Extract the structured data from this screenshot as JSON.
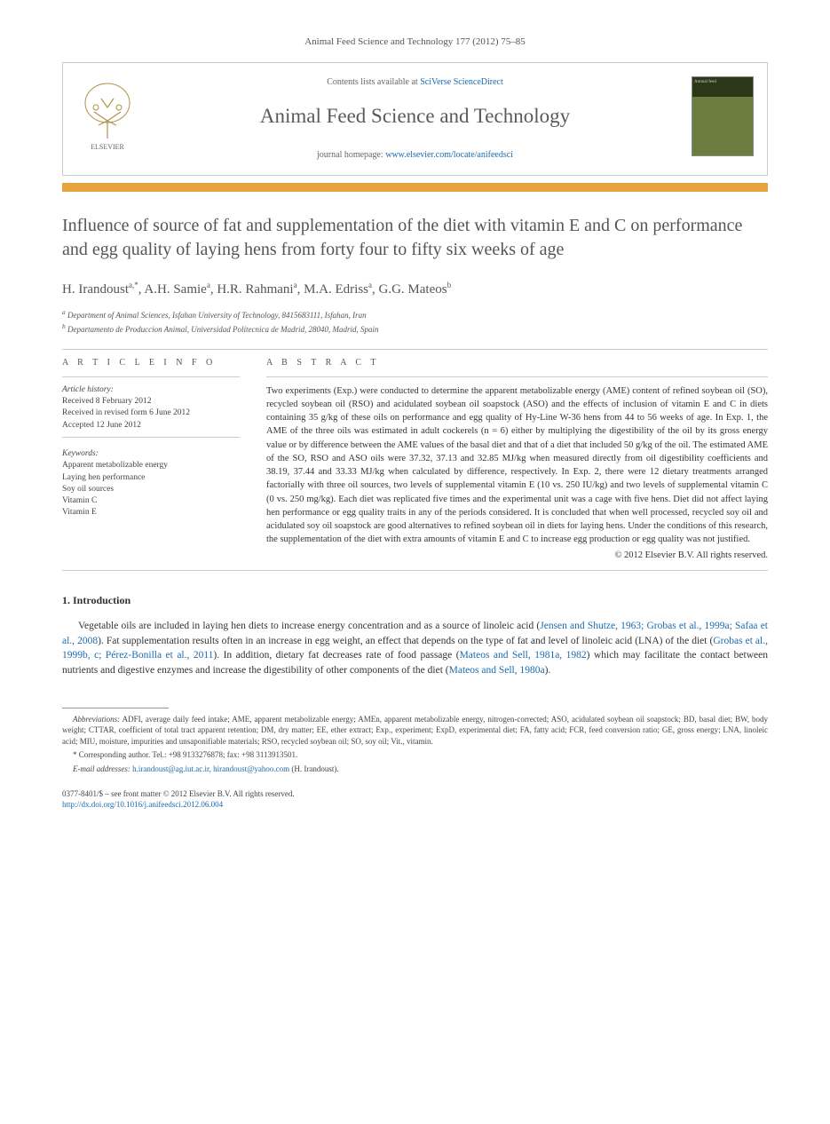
{
  "header": {
    "citation": "Animal Feed Science and Technology 177 (2012) 75–85",
    "contents_prefix": "Contents lists available at ",
    "contents_link": "SciVerse ScienceDirect",
    "journal_name": "Animal Feed Science and Technology",
    "homepage_prefix": "journal homepage: ",
    "homepage_url": "www.elsevier.com/locate/anifeedsci",
    "cover_label": "Animal feed"
  },
  "article": {
    "title": "Influence of source of fat and supplementation of the diet with vitamin E and C on performance and egg quality of laying hens from forty four to fifty six weeks of age",
    "authors_html": "H. Irandoust<sup>a,*</sup>, A.H. Samie<sup>a</sup>, H.R. Rahmani<sup>a</sup>, M.A. Edriss<sup>a</sup>, G.G. Mateos<sup>b</sup>",
    "affiliations": [
      "a Department of Animal Sciences, Isfahan University of Technology, 8415683111, Isfahan, Iran",
      "b Departamento de Produccion Animal, Universidad Politecnica de Madrid, 28040, Madrid, Spain"
    ]
  },
  "info": {
    "section_label": "A R T I C L E   I N F O",
    "history_label": "Article history:",
    "history": [
      "Received 8 February 2012",
      "Received in revised form 6 June 2012",
      "Accepted 12 June 2012"
    ],
    "keywords_label": "Keywords:",
    "keywords": [
      "Apparent metabolizable energy",
      "Laying hen performance",
      "Soy oil sources",
      "Vitamin C",
      "Vitamin E"
    ]
  },
  "abstract": {
    "section_label": "A B S T R A C T",
    "text": "Two experiments (Exp.) were conducted to determine the apparent metabolizable energy (AME) content of refined soybean oil (SO), recycled soybean oil (RSO) and acidulated soybean oil soapstock (ASO) and the effects of inclusion of vitamin E and C in diets containing 35 g/kg of these oils on performance and egg quality of Hy-Line W-36 hens from 44 to 56 weeks of age. In Exp. 1, the AME of the three oils was estimated in adult cockerels (n = 6) either by multiplying the digestibility of the oil by its gross energy value or by difference between the AME values of the basal diet and that of a diet that included 50 g/kg of the oil. The estimated AME of the SO, RSO and ASO oils were 37.32, 37.13 and 32.85 MJ/kg when measured directly from oil digestibility coefficients and 38.19, 37.44 and 33.33 MJ/kg when calculated by difference, respectively. In Exp. 2, there were 12 dietary treatments arranged factorially with three oil sources, two levels of supplemental vitamin E (10 vs. 250 IU/kg) and two levels of supplemental vitamin C (0 vs. 250 mg/kg). Each diet was replicated five times and the experimental unit was a cage with five hens. Diet did not affect laying hen performance or egg quality traits in any of the periods considered. It is concluded that when well processed, recycled soy oil and acidulated soy oil soapstock are good alternatives to refined soybean oil in diets for laying hens. Under the conditions of this research, the supplementation of the diet with extra amounts of vitamin E and C to increase egg production or egg quality was not justified.",
    "copyright": "© 2012 Elsevier B.V. All rights reserved."
  },
  "intro": {
    "heading": "1.  Introduction",
    "para": "Vegetable oils are included in laying hen diets to increase energy concentration and as a source of linoleic acid (<a>Jensen and Shutze, 1963; Grobas et al., 1999a; Safaa et al., 2008</a>). Fat supplementation results often in an increase in egg weight, an effect that depends on the type of fat and level of linoleic acid (LNA) of the diet (<a>Grobas et al., 1999b, c; Pérez-Bonilla et al., 2011</a>). In addition, dietary fat decreases rate of food passage (<a>Mateos and Sell, 1981a, 1982</a>) which may facilitate the contact between nutrients and digestive enzymes and increase the digestibility of other components of the diet (<a>Mateos and Sell, 1980a</a>)."
  },
  "footnotes": {
    "abbrev_label": "Abbreviations:",
    "abbrev_text": " ADFI, average daily feed intake; AME, apparent metabolizable energy; AMEn, apparent metabolizable energy, nitrogen-corrected; ASO, acidulated soybean oil soapstock; BD, basal diet; BW, body weight; CTTAR, coefficient of total tract apparent retention; DM, dry matter; EE, ether extract; Exp., experiment; ExpD, experimental diet; FA, fatty acid; FCR, feed conversion ratio; GE, gross energy; LNA, linoleic acid; MIU, moisture, impurities and unsaponifiable materials; RSO, recycled soybean oil; SO, soy oil; Vit., vitamin.",
    "corresponding": "* Corresponding author. Tel.: +98 9133276878; fax: +98 3113913501.",
    "email_label": "E-mail addresses: ",
    "emails": "h.irandoust@ag.iut.ac.ir, hirandoust@yahoo.com",
    "email_suffix": " (H. Irandoust)."
  },
  "bottom": {
    "issn": "0377-8401/$ – see front matter © 2012 Elsevier B.V. All rights reserved.",
    "doi": "http://dx.doi.org/10.1016/j.anifeedsci.2012.06.004"
  },
  "colors": {
    "link": "#1a6baf",
    "orange_bar": "#e8a33d",
    "cover_green": "#6b7d3f"
  }
}
